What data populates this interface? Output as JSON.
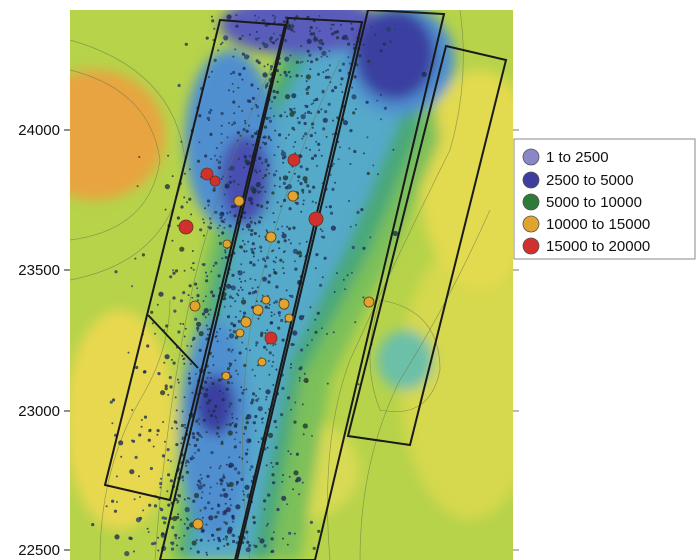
{
  "chart_data": {
    "type": "contour map with bubble scatter",
    "title": "",
    "xlabel": "",
    "ylabel": "",
    "y_axis": {
      "ticks": [
        24000,
        23500,
        23000,
        22500
      ],
      "tick_labels": [
        "24000",
        "23500",
        "23000",
        "22500"
      ],
      "ylim": [
        22500,
        24400
      ]
    },
    "grid": false,
    "legend": {
      "placement": "right",
      "entries": [
        {
          "label": "1 to 2500",
          "color": "#8a86c8"
        },
        {
          "label": "2500 to 5000",
          "color": "#3f3e9e"
        },
        {
          "label": "5000 to 10000",
          "color": "#2e7a38"
        },
        {
          "label": "10000 to 15000",
          "color": "#e1a42e"
        },
        {
          "label": "15000 to 20000",
          "color": "#d23030"
        }
      ]
    },
    "colors": {
      "low": "#3b3fa0",
      "mid_low": "#4f8fd0",
      "mid": "#4aa878",
      "mid_high": "#a6cc48",
      "high": "#e8dc50",
      "peak": "#e8a440"
    }
  }
}
